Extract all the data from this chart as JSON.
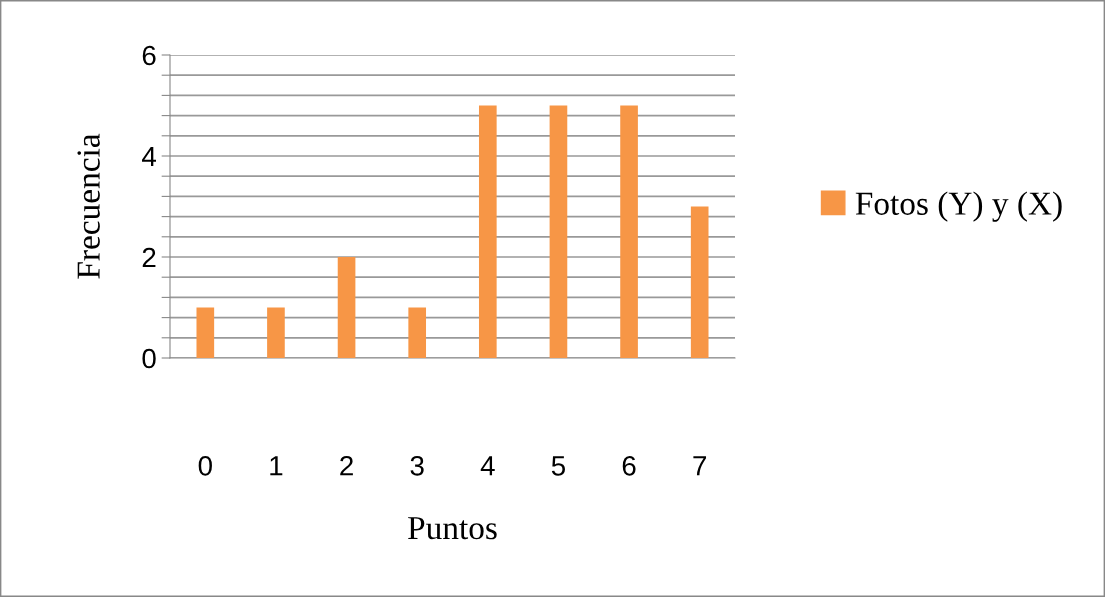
{
  "chart_data": {
    "type": "bar",
    "xlabel": "Puntos",
    "ylabel": "Frecuencia",
    "categories": [
      "0",
      "1",
      "2",
      "3",
      "4",
      "5",
      "6",
      "7"
    ],
    "series": [
      {
        "name": "Fotos (Y) y (X)",
        "color": "#f79646",
        "values": [
          1,
          1,
          2,
          1,
          5,
          5,
          5,
          3
        ]
      }
    ],
    "ylim": [
      0,
      6
    ],
    "yticks": [
      0,
      {
        "value": 0.4,
        "label": null
      },
      {
        "value": 0.8,
        "label": null
      },
      {
        "value": 1.2,
        "label": null
      },
      {
        "value": 1.6,
        "label": null
      },
      2,
      {
        "value": 2.4,
        "label": null
      },
      {
        "value": 2.8,
        "label": null
      },
      {
        "value": 3.2,
        "label": null
      },
      {
        "value": 3.6,
        "label": null
      },
      4,
      {
        "value": 4.4,
        "label": null
      },
      {
        "value": 4.8,
        "label": null
      },
      {
        "value": 5.2,
        "label": null
      },
      {
        "value": 5.6,
        "label": null
      },
      6
    ],
    "grid": "y",
    "legend": "right"
  }
}
